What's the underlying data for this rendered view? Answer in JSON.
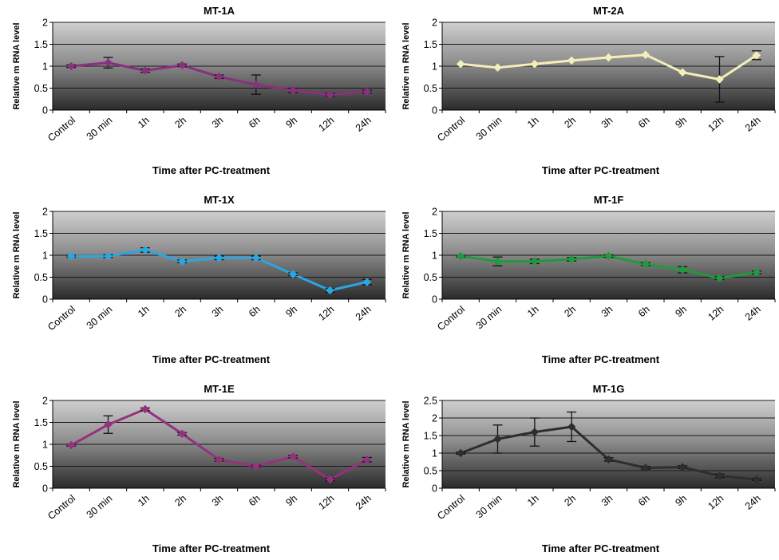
{
  "figure": {
    "colors": {
      "MT-1A": "#8b2f7f",
      "MT-2A": "#f4efb8",
      "MT-1X": "#2aa6e2",
      "MT-1F": "#1f9a3c",
      "MT-1E": "#95317f",
      "MT-1G": "#2e2e2e"
    }
  },
  "chart_data": [
    {
      "type": "line",
      "title": "MT-1A",
      "xlabel": "Time after PC-treatment",
      "ylabel": "Relative m RNA level",
      "categories": [
        "Control",
        "30 min",
        "1h",
        "2h",
        "3h",
        "6h",
        "9h",
        "12h",
        "24h"
      ],
      "yticks": [
        "0",
        "0.5",
        "1",
        "1.5",
        "2"
      ],
      "ylim": [
        0,
        2
      ],
      "grid": true,
      "series": [
        {
          "values": [
            1.0,
            1.08,
            0.9,
            1.02,
            0.76,
            0.58,
            0.45,
            0.35,
            0.42
          ],
          "errors": [
            0.03,
            0.12,
            0.04,
            0.03,
            0.04,
            0.22,
            0.05,
            0.03,
            0.03
          ]
        }
      ]
    },
    {
      "type": "line",
      "title": "MT-2A",
      "xlabel": "Time after PC-treatment",
      "ylabel": "Relative m RNA level",
      "categories": [
        "Control",
        "30 min",
        "1h",
        "2h",
        "3h",
        "6h",
        "9h",
        "12h",
        "24h"
      ],
      "yticks": [
        "0",
        "0.5",
        "1",
        "1.5",
        "2"
      ],
      "ylim": [
        0,
        2
      ],
      "grid": true,
      "series": [
        {
          "values": [
            1.05,
            0.97,
            1.05,
            1.13,
            1.2,
            1.26,
            0.86,
            0.7,
            1.25
          ],
          "errors": [
            0.0,
            0.0,
            0.0,
            0.0,
            0.0,
            0.0,
            0.0,
            0.52,
            0.1
          ]
        }
      ]
    },
    {
      "type": "line",
      "title": "MT-1X",
      "xlabel": "Time after PC-treatment",
      "ylabel": "Relative m RNA level",
      "categories": [
        "Control",
        "30 min",
        "1h",
        "2h",
        "3h",
        "6h",
        "9h",
        "12h",
        "24h"
      ],
      "yticks": [
        "0",
        "0.5",
        "1",
        "1.5",
        "2"
      ],
      "ylim": [
        0,
        2
      ],
      "grid": true,
      "series": [
        {
          "values": [
            0.98,
            0.98,
            1.12,
            0.86,
            0.94,
            0.94,
            0.57,
            0.2,
            0.39
          ],
          "errors": [
            0.02,
            0.03,
            0.05,
            0.03,
            0.04,
            0.04,
            0.03,
            0.04,
            0.06
          ]
        }
      ]
    },
    {
      "type": "line",
      "title": "MT-1F",
      "xlabel": "Time after PC-treatment",
      "ylabel": "Relative m RNA level",
      "categories": [
        "Control",
        "30 min",
        "1h",
        "2h",
        "3h",
        "6h",
        "9h",
        "12h",
        "24h"
      ],
      "yticks": [
        "0",
        "0.5",
        "1",
        "1.5",
        "2"
      ],
      "ylim": [
        0,
        2
      ],
      "grid": true,
      "series": [
        {
          "values": [
            0.98,
            0.86,
            0.86,
            0.91,
            0.98,
            0.8,
            0.67,
            0.48,
            0.61
          ],
          "errors": [
            0.02,
            0.1,
            0.05,
            0.04,
            0.03,
            0.03,
            0.07,
            0.03,
            0.03
          ]
        }
      ]
    },
    {
      "type": "line",
      "title": "MT-1E",
      "xlabel": "Time after PC-treatment",
      "ylabel": "Relative m RNA level",
      "categories": [
        "Control",
        "30 min",
        "1h",
        "2h",
        "3h",
        "6h",
        "9h",
        "12h",
        "24h"
      ],
      "yticks": [
        "0",
        "0.5",
        "1",
        "1.5",
        "2"
      ],
      "ylim": [
        0,
        2
      ],
      "grid": true,
      "series": [
        {
          "values": [
            0.98,
            1.45,
            1.8,
            1.24,
            0.65,
            0.5,
            0.72,
            0.2,
            0.65
          ],
          "errors": [
            0.02,
            0.2,
            0.03,
            0.03,
            0.03,
            0.02,
            0.03,
            0.03,
            0.05
          ]
        }
      ]
    },
    {
      "type": "line",
      "title": "MT-1G",
      "xlabel": "Time after PC-treatment",
      "ylabel": "Relative m RNA level",
      "categories": [
        "Control",
        "30 min",
        "1h",
        "2h",
        "3h",
        "6h",
        "9h",
        "12h",
        "24h"
      ],
      "yticks": [
        "0",
        "0.5",
        "1",
        "1.5",
        "2",
        "2.5"
      ],
      "ylim": [
        0,
        2.5
      ],
      "grid": true,
      "series": [
        {
          "values": [
            1.0,
            1.4,
            1.6,
            1.75,
            0.82,
            0.58,
            0.6,
            0.35,
            0.25
          ],
          "errors": [
            0.03,
            0.4,
            0.4,
            0.42,
            0.05,
            0.04,
            0.04,
            0.05,
            0.03
          ]
        }
      ]
    }
  ]
}
